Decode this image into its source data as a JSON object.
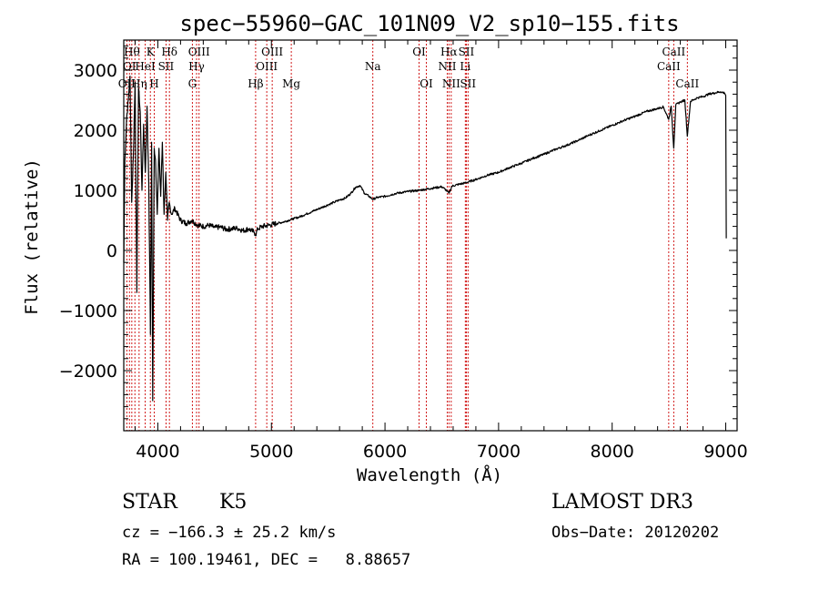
{
  "chart_data": {
    "type": "line",
    "title": "spec−55960−GAC_101N09_V2_sp10−155.fits",
    "xlabel": "Wavelength (Å)",
    "ylabel": "Flux (relative)",
    "xlim": [
      3700,
      9100
    ],
    "ylim": [
      -3000,
      3500
    ],
    "x_ticks": [
      4000,
      5000,
      6000,
      7000,
      8000,
      9000
    ],
    "y_ticks": [
      -2000,
      -1000,
      0,
      1000,
      2000,
      3000
    ],
    "y_tick_labels": [
      "−2000",
      "−1000",
      "0",
      "1000",
      "2000",
      "3000"
    ],
    "series": [
      {
        "name": "spectrum",
        "x": [
          3700,
          3710,
          3725,
          3740,
          3755,
          3770,
          3785,
          3800,
          3815,
          3830,
          3845,
          3860,
          3875,
          3890,
          3905,
          3920,
          3935,
          3945,
          3955,
          3968,
          3980,
          3995,
          4010,
          4025,
          4040,
          4055,
          4070,
          4085,
          4100,
          4120,
          4150,
          4200,
          4250,
          4300,
          4350,
          4400,
          4450,
          4500,
          4550,
          4600,
          4650,
          4700,
          4750,
          4800,
          4850,
          4861,
          4880,
          4920,
          4980,
          5050,
          5100,
          5150,
          5180,
          5200,
          5250,
          5300,
          5350,
          5400,
          5450,
          5500,
          5550,
          5600,
          5650,
          5700,
          5740,
          5780,
          5820,
          5860,
          5893,
          5930,
          6000,
          6100,
          6200,
          6300,
          6400,
          6500,
          6540,
          6563,
          6590,
          6650,
          6700,
          6800,
          6900,
          7000,
          7100,
          7200,
          7300,
          7400,
          7500,
          7600,
          7700,
          7800,
          7900,
          8000,
          8100,
          8200,
          8300,
          8400,
          8450,
          8498,
          8520,
          8542,
          8560,
          8600,
          8640,
          8662,
          8690,
          8750,
          8800,
          8850,
          8900,
          8950,
          8990,
          9000,
          9005
        ],
        "y": [
          -200,
          1500,
          2200,
          2500,
          2900,
          800,
          1600,
          2800,
          -700,
          2700,
          2300,
          1000,
          2100,
          1300,
          2400,
          1100,
          -1400,
          1800,
          -2500,
          1700,
          1500,
          600,
          1700,
          900,
          1800,
          600,
          1300,
          500,
          800,
          600,
          700,
          500,
          450,
          500,
          420,
          400,
          420,
          380,
          390,
          350,
          360,
          370,
          330,
          360,
          300,
          260,
          360,
          400,
          420,
          450,
          470,
          500,
          520,
          530,
          560,
          600,
          640,
          680,
          720,
          760,
          800,
          840,
          870,
          950,
          1050,
          1080,
          950,
          900,
          850,
          880,
          900,
          950,
          980,
          1000,
          1030,
          1060,
          1000,
          950,
          1070,
          1100,
          1120,
          1180,
          1250,
          1300,
          1380,
          1450,
          1530,
          1600,
          1680,
          1750,
          1830,
          1920,
          2000,
          2080,
          2160,
          2230,
          2310,
          2360,
          2390,
          2180,
          2400,
          1700,
          2420,
          2470,
          2500,
          1900,
          2480,
          2540,
          2560,
          2600,
          2620,
          2640,
          2620,
          2580,
          200
        ]
      }
    ],
    "spectral_lines": [
      {
        "wl": 3727,
        "label": "OII",
        "row": 3
      },
      {
        "wl": 3750,
        "label": "OI",
        "row": 2
      },
      {
        "wl": 3771,
        "label": "Hθ",
        "row": 1
      },
      {
        "wl": 3798,
        "label": "",
        "row": 0
      },
      {
        "wl": 3835,
        "label": "Hη",
        "row": 3
      },
      {
        "wl": 3889,
        "label": "HeI",
        "row": 2
      },
      {
        "wl": 3934,
        "label": "K",
        "row": 1
      },
      {
        "wl": 3968,
        "label": "H",
        "row": 3
      },
      {
        "wl": 4072,
        "label": "SII",
        "row": 2
      },
      {
        "wl": 4102,
        "label": "Hδ",
        "row": 1
      },
      {
        "wl": 4304,
        "label": "G",
        "row": 3
      },
      {
        "wl": 4341,
        "label": "Hγ",
        "row": 2
      },
      {
        "wl": 4363,
        "label": "OIII",
        "row": 1
      },
      {
        "wl": 4861,
        "label": "Hβ",
        "row": 3
      },
      {
        "wl": 4959,
        "label": "OIII",
        "row": 2
      },
      {
        "wl": 5007,
        "label": "OIII",
        "row": 1
      },
      {
        "wl": 5175,
        "label": "Mg",
        "row": 3
      },
      {
        "wl": 5893,
        "label": "Na",
        "row": 2
      },
      {
        "wl": 6300,
        "label": "OI",
        "row": 1
      },
      {
        "wl": 6364,
        "label": "OI",
        "row": 3
      },
      {
        "wl": 6548,
        "label": "NII",
        "row": 2
      },
      {
        "wl": 6563,
        "label": "Hα",
        "row": 1
      },
      {
        "wl": 6583,
        "label": "NII",
        "row": 3
      },
      {
        "wl": 6707,
        "label": "Li",
        "row": 2
      },
      {
        "wl": 6716,
        "label": "SII",
        "row": 1
      },
      {
        "wl": 6731,
        "label": "SII",
        "row": 3
      },
      {
        "wl": 8498,
        "label": "CaII",
        "row": 2
      },
      {
        "wl": 8542,
        "label": "CaII",
        "row": 1
      },
      {
        "wl": 8662,
        "label": "CaII",
        "row": 3
      }
    ]
  },
  "info": {
    "class_label": "STAR",
    "subclass_label": "K5",
    "survey": "LAMOST DR3",
    "cz": "cz = −166.3 ± 25.2 km/s",
    "obs_date": "Obs−Date: 20120202",
    "radec": "RA = 100.19461, DEC =   8.88657"
  },
  "colors": {
    "spectrum": "#000000",
    "line_marker": "#cc0000",
    "axes": "#000000"
  }
}
